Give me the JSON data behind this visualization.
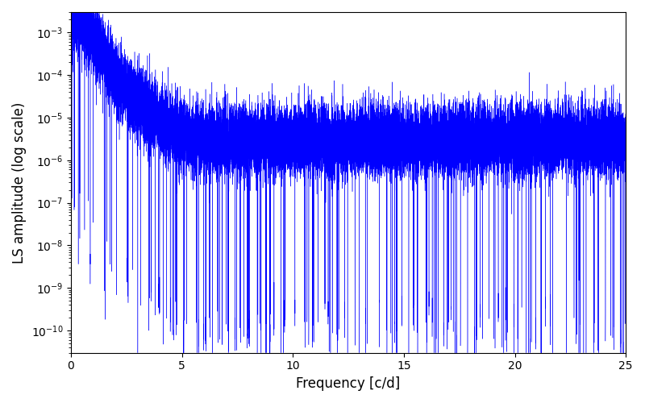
{
  "title": "",
  "xlabel": "Frequency [c/d]",
  "ylabel": "LS amplitude (log scale)",
  "xlim": [
    0,
    25
  ],
  "ylim": [
    3e-11,
    0.003
  ],
  "line_color": "#0000ff",
  "linewidth": 0.3,
  "figsize": [
    8.0,
    5.0
  ],
  "dpi": 100,
  "background_color": "#ffffff",
  "n_points": 25000,
  "seed": 17,
  "peak_amplitude": 0.0025,
  "noise_floor": 3e-06,
  "spectral_index": 3.5,
  "dip_floor": 3e-11,
  "n_dips": 200,
  "freq_break": 6.0
}
